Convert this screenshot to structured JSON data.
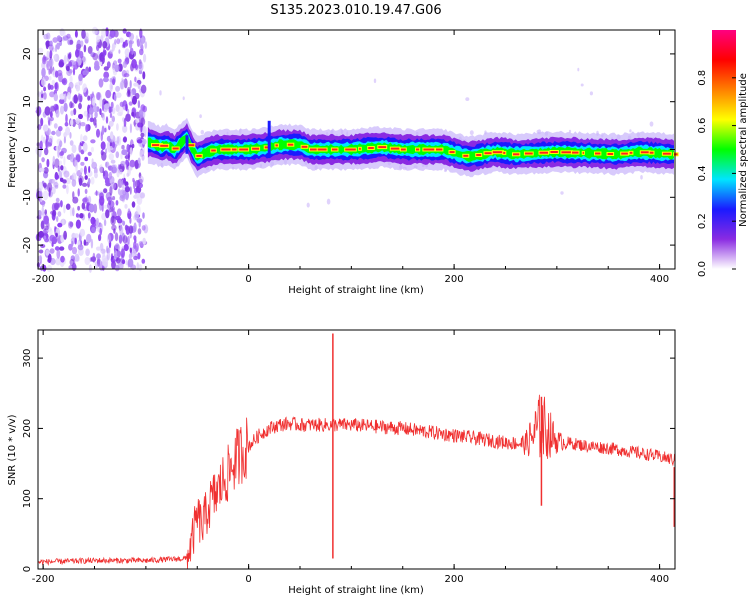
{
  "title": "S135.2023.010.19.47.G06",
  "chart_data": [
    {
      "type": "heatmap",
      "name": "spectrogram",
      "xlabel": "Height of straight line (km)",
      "ylabel": "Frequency (Hz)",
      "xlim": [
        -205,
        415
      ],
      "ylim": [
        -25,
        25
      ],
      "xticks": [
        -200,
        0,
        200,
        400
      ],
      "yticks": [
        -20,
        -10,
        0,
        10,
        20
      ],
      "noise_region_x": [
        -205,
        -100
      ],
      "ridge_frequency": [
        {
          "x": -97,
          "y": 1.5
        },
        {
          "x": -90,
          "y": 1
        },
        {
          "x": -85,
          "y": 0.5
        },
        {
          "x": -80,
          "y": 1
        },
        {
          "x": -72,
          "y": 0
        },
        {
          "x": -65,
          "y": 1.5
        },
        {
          "x": -60,
          "y": 2.5
        },
        {
          "x": -55,
          "y": 0
        },
        {
          "x": -50,
          "y": -1.5
        },
        {
          "x": -40,
          "y": -0.5
        },
        {
          "x": -30,
          "y": 0
        },
        {
          "x": 0,
          "y": 0
        },
        {
          "x": 20,
          "y": 0.5
        },
        {
          "x": 30,
          "y": 1
        },
        {
          "x": 50,
          "y": 1
        },
        {
          "x": 60,
          "y": 0
        },
        {
          "x": 100,
          "y": 0
        },
        {
          "x": 130,
          "y": 0.5
        },
        {
          "x": 150,
          "y": 0
        },
        {
          "x": 190,
          "y": 0
        },
        {
          "x": 205,
          "y": -1
        },
        {
          "x": 215,
          "y": -1.5
        },
        {
          "x": 240,
          "y": -0.5
        },
        {
          "x": 260,
          "y": -1
        },
        {
          "x": 300,
          "y": -0.5
        },
        {
          "x": 360,
          "y": -1
        },
        {
          "x": 380,
          "y": -0.5
        },
        {
          "x": 415,
          "y": -1
        }
      ],
      "colorbar": {
        "label": "Normalized spectral amplitude",
        "range": [
          0,
          1
        ],
        "ticks": [
          "0.0",
          "0.2",
          "0.4",
          "0.6",
          "0.8"
        ],
        "colors": [
          "#ffffff",
          "#8a2be2",
          "#1a1aff",
          "#00e5ff",
          "#00ff00",
          "#ffff00",
          "#ff8000",
          "#ff0000",
          "#ff0080"
        ]
      }
    },
    {
      "type": "line",
      "name": "snr",
      "xlabel": "Height of straight line (km)",
      "ylabel": "SNR (10 * v/v)",
      "xlim": [
        -205,
        415
      ],
      "ylim": [
        0,
        340
      ],
      "xticks": [
        -200,
        0,
        200,
        400
      ],
      "yticks": [
        0,
        100,
        200,
        300
      ],
      "color": "#f03030",
      "series": [
        {
          "x": [
            -205,
            -150,
            -100,
            -60,
            -55,
            -50,
            -45,
            -40,
            -35,
            -30,
            -25,
            -20,
            -15,
            -10,
            -5,
            0,
            10,
            20,
            30,
            40,
            50,
            60,
            80,
            100,
            150,
            200,
            250,
            270,
            285,
            300,
            330,
            350,
            380,
            400,
            415
          ],
          "y": [
            10,
            12,
            12,
            15,
            40,
            75,
            60,
            85,
            100,
            110,
            125,
            135,
            150,
            160,
            170,
            175,
            190,
            200,
            205,
            207,
            205,
            205,
            205,
            205,
            200,
            190,
            180,
            178,
            205,
            182,
            175,
            172,
            165,
            160,
            155
          ]
        }
      ],
      "features": [
        {
          "x": 82,
          "y_min": 15,
          "y_max": 335
        },
        {
          "x": 285,
          "y_min": 90,
          "y_max": 245
        }
      ]
    }
  ]
}
